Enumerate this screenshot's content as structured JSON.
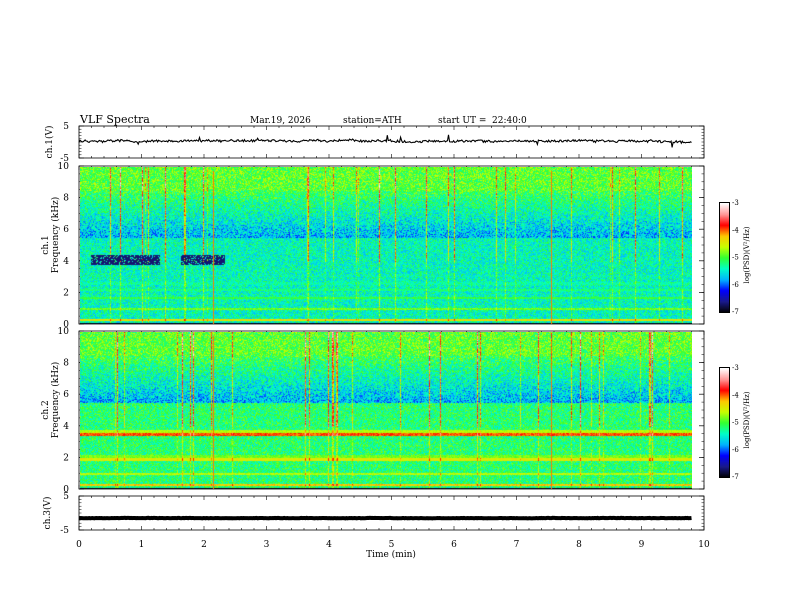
{
  "chart_data": {
    "type": "heatmap",
    "title": "VLF Spectra",
    "date": "Mar.19, 2026",
    "station": "station=ATH",
    "start_label": "start UT =",
    "start_time": "22:40:0",
    "xlabel": "Time (min)",
    "xlim": [
      0,
      10
    ],
    "x_ticks": [
      "0",
      "1",
      "2",
      "3",
      "4",
      "5",
      "6",
      "7",
      "8",
      "9",
      "10"
    ],
    "data_end_min": 9.8,
    "panels": [
      {
        "id": "ch1v",
        "kind": "waveform",
        "label": "ch.1(V)",
        "ylim": [
          -5,
          5
        ],
        "y_ticks": [
          "5",
          "-5"
        ],
        "baseline": 0.3,
        "noise_amplitude": 0.35
      },
      {
        "id": "ch1",
        "kind": "spectrogram",
        "label": "ch.1",
        "ylabel": "Frequency (kHz)",
        "ylim": [
          0,
          10
        ],
        "y_ticks": [
          "0",
          "2",
          "4",
          "6",
          "8",
          "10"
        ],
        "colorbar": {
          "label": "log(PSD)(V²/Hz)",
          "range": [
            -7,
            -3
          ],
          "ticks": [
            "-3",
            "-4",
            "-5",
            "-6",
            "-7"
          ]
        }
      },
      {
        "id": "ch2",
        "kind": "spectrogram",
        "label": "ch.2",
        "ylabel": "Frequency (kHz)",
        "ylim": [
          0,
          10
        ],
        "y_ticks": [
          "0",
          "2",
          "4",
          "6",
          "8",
          "10"
        ],
        "colorbar": {
          "label": "log(PSD)(V²/Hz)",
          "range": [
            -7,
            -3
          ],
          "ticks": [
            "-3",
            "-4",
            "-5",
            "-6",
            "-7"
          ]
        }
      },
      {
        "id": "ch3v",
        "kind": "waveform",
        "label": "ch.3(V)",
        "ylim": [
          -5,
          5
        ],
        "y_ticks": [
          "5",
          "-5"
        ],
        "baseline": -1.5,
        "noise_amplitude": 0.05
      }
    ],
    "colormap": [
      "#000000",
      "#1a1a8c",
      "#0000ff",
      "#00b4ff",
      "#00ffc8",
      "#32ff32",
      "#c8ff00",
      "#ffc800",
      "#ff0000",
      "#ff9999",
      "#ffffff"
    ],
    "vertical_markers_min": [
      2.15,
      7.55
    ]
  }
}
